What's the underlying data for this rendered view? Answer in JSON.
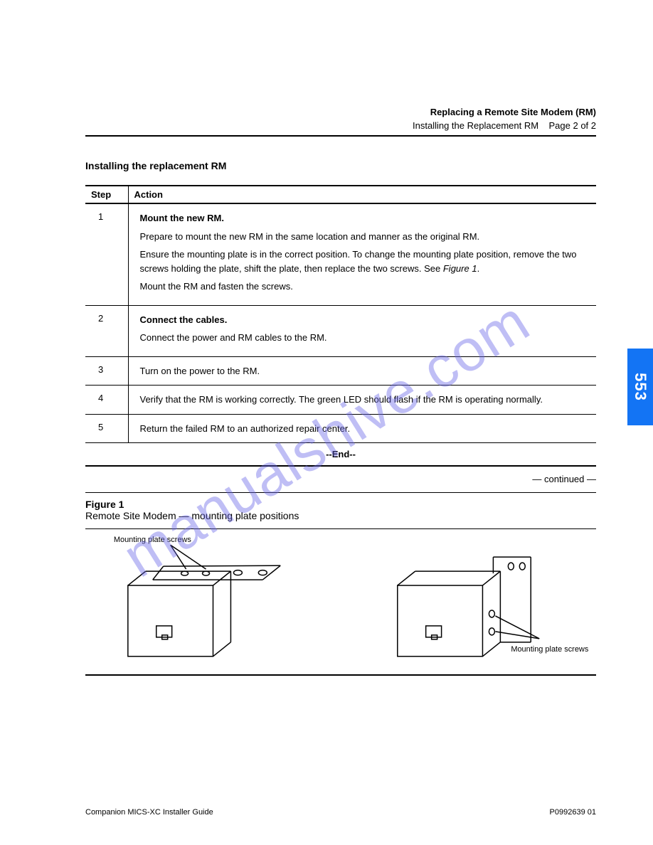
{
  "header": {
    "title": "Replacing a Remote Site Modem (RM)",
    "subtitle": "Installing the Replacement RM",
    "page_label": "Page 2 of 2"
  },
  "task_title": "Installing the replacement RM",
  "table": {
    "head_step": "Step",
    "head_action": "Action",
    "rows": [
      {
        "step": "1",
        "lines": [
          "Mount the new RM.",
          "Prepare to mount the new RM in the same location and manner as the original RM.",
          "Ensure the mounting plate is in the correct position. To change the mounting plate position, remove the two screws holding the plate, shift the plate, then replace the two screws. See <i>Figure 1</i>.",
          "Mount the RM and fasten the screws."
        ]
      },
      {
        "step": "2",
        "lines": [
          "Connect the cables.",
          "Connect the power and RM cables to the RM."
        ]
      },
      {
        "step": "3",
        "lines": [
          "Turn on the power to the RM."
        ]
      },
      {
        "step": "4",
        "lines": [
          "Verify that the RM is working correctly. The green LED should flash if the RM is operating normally."
        ]
      },
      {
        "step": "5",
        "lines": [
          "Return the failed RM to an authorized repair center."
        ]
      }
    ]
  },
  "end_label": "--End--",
  "continued": "— continued —",
  "figure": {
    "title_prefix": "Figure 1",
    "title_rest": "Remote Site Modem — mounting plate positions",
    "left_label": "Mounting plate screws",
    "right_label": "Mounting plate screws",
    "stroke_color": "#000000"
  },
  "side_tab": "553",
  "footer": {
    "left": "Companion MICS-XC Installer Guide",
    "right": "P0992639  01"
  },
  "watermark": "manualshive.com"
}
